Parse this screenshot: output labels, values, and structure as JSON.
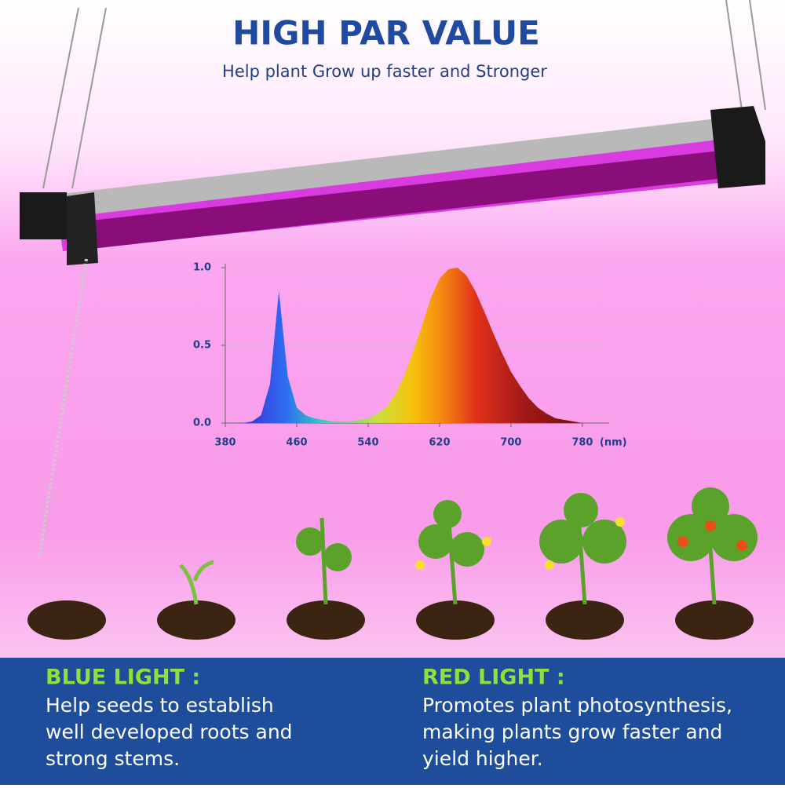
{
  "header": {
    "title": "HIGH PAR VALUE",
    "subtitle": "Help plant Grow up faster and Stronger"
  },
  "chart_data": {
    "type": "area",
    "x_label": "(nm)",
    "x": [
      400,
      410,
      420,
      430,
      440,
      450,
      460,
      470,
      480,
      490,
      500,
      510,
      520,
      530,
      540,
      550,
      560,
      570,
      580,
      590,
      600,
      610,
      620,
      630,
      640,
      650,
      660,
      670,
      680,
      690,
      700,
      710,
      720,
      730,
      740,
      750,
      760,
      770,
      780,
      790
    ],
    "values": [
      0,
      0.01,
      0.05,
      0.25,
      0.85,
      0.3,
      0.1,
      0.05,
      0.03,
      0.02,
      0.01,
      0.01,
      0.01,
      0.02,
      0.03,
      0.06,
      0.1,
      0.18,
      0.3,
      0.45,
      0.62,
      0.8,
      0.93,
      0.99,
      1.0,
      0.95,
      0.85,
      0.72,
      0.58,
      0.45,
      0.33,
      0.24,
      0.16,
      0.1,
      0.06,
      0.03,
      0.02,
      0.01,
      0,
      0
    ],
    "xlim": [
      380,
      810
    ],
    "ylim": [
      0,
      1
    ],
    "xticks": [
      380,
      460,
      540,
      620,
      700,
      780
    ],
    "yticks": [
      {
        "value": 0,
        "label": "0.0"
      },
      0.5,
      {
        "value": 1,
        "label": "1.0"
      }
    ],
    "grid": true
  },
  "panels": {
    "blue": {
      "heading": "BLUE LIGHT :",
      "lines": [
        "Help seeds to establish",
        "well developed roots and",
        "strong stems."
      ]
    },
    "red": {
      "heading": "RED LIGHT :",
      "lines": [
        "Promotes plant photosynthesis,",
        "making plants grow faster and",
        "yield higher."
      ]
    }
  }
}
